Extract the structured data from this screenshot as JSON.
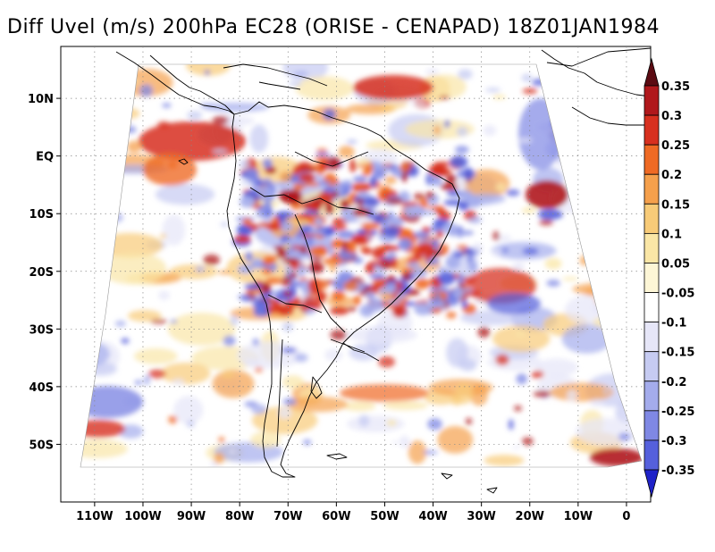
{
  "title": "Diff Uvel (m/s) 200hPa EC28 (ORISE - CENAPAD) 18Z01JAN1984",
  "map": {
    "lon_range": [
      -117,
      5
    ],
    "lat_range": [
      -60,
      19
    ],
    "lat_ticks": [
      {
        "value": 10,
        "label": "10N"
      },
      {
        "value": 0,
        "label": "EQ"
      },
      {
        "value": -10,
        "label": "10S"
      },
      {
        "value": -20,
        "label": "20S"
      },
      {
        "value": -30,
        "label": "30S"
      },
      {
        "value": -40,
        "label": "40S"
      },
      {
        "value": -50,
        "label": "50S"
      }
    ],
    "lon_ticks": [
      {
        "value": -110,
        "label": "110W"
      },
      {
        "value": -100,
        "label": "100W"
      },
      {
        "value": -90,
        "label": "90W"
      },
      {
        "value": -80,
        "label": "80W"
      },
      {
        "value": -70,
        "label": "70W"
      },
      {
        "value": -60,
        "label": "60W"
      },
      {
        "value": -50,
        "label": "50W"
      },
      {
        "value": -40,
        "label": "40W"
      },
      {
        "value": -30,
        "label": "30W"
      },
      {
        "value": -20,
        "label": "20W"
      },
      {
        "value": -10,
        "label": "10W"
      },
      {
        "value": 0,
        "label": "0"
      }
    ],
    "gridlines": "dotted",
    "domain_outline": "trapezoid"
  },
  "colorbar": {
    "orientation": "vertical",
    "placement": "right",
    "extend": "both",
    "levels": [
      {
        "label": "0.35",
        "color": "#b0181c"
      },
      {
        "label": "0.3",
        "color": "#d7301f"
      },
      {
        "label": "0.25",
        "color": "#ef6a24"
      },
      {
        "label": "0.2",
        "color": "#f5a04c"
      },
      {
        "label": "0.15",
        "color": "#f8cb78"
      },
      {
        "label": "0.1",
        "color": "#fae6a6"
      },
      {
        "label": "0.05",
        "color": "#fdf6d6"
      },
      {
        "label": "-0.05",
        "color": "#ffffff"
      },
      {
        "label": "-0.1",
        "color": "#e6e6f8"
      },
      {
        "label": "-0.15",
        "color": "#c6cbf2"
      },
      {
        "label": "-0.2",
        "color": "#a4acec"
      },
      {
        "label": "-0.25",
        "color": "#7f88e4"
      },
      {
        "label": "-0.3",
        "color": "#5560dc"
      },
      {
        "label": "-0.35",
        "color": "#3a40d4"
      }
    ],
    "colors": [
      "#5b0b12",
      "#b0181c",
      "#d7301f",
      "#ef6a24",
      "#f5a04c",
      "#f8cb78",
      "#fae6a6",
      "#fdf6d6",
      "#ffffff",
      "#e6e6f8",
      "#c6cbf2",
      "#a4acec",
      "#7f88e4",
      "#5560dc",
      "#1f22c8"
    ]
  }
}
